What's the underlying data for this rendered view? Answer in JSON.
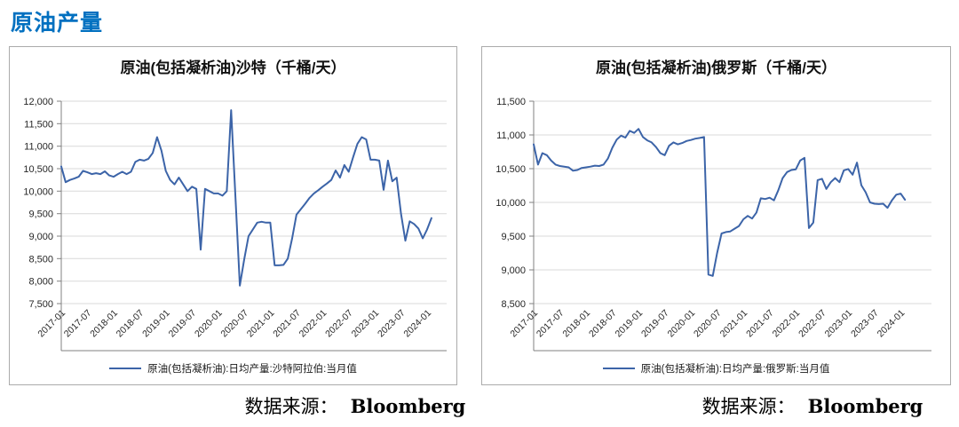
{
  "page": {
    "title": "原油产量",
    "title_color": "#0070C0"
  },
  "chart_data": [
    {
      "type": "line",
      "title": "原油(包括凝析油)沙特（千桶/天）",
      "legend": "原油(包括凝析油):日均产量:沙特阿拉伯:当月值",
      "source_label": "数据来源：",
      "source_name": "Bloomberg",
      "line_color": "#3C64A8",
      "grid": true,
      "legend_position": "bottom",
      "ylim": [
        7500,
        12000
      ],
      "y_ticks": [
        {
          "value": 12000,
          "label": "12,000"
        },
        {
          "value": 11500,
          "label": "11,500"
        },
        {
          "value": 11000,
          "label": "11,000"
        },
        {
          "value": 10500,
          "label": "10,500"
        },
        {
          "value": 10000,
          "label": "10,000"
        },
        {
          "value": 9500,
          "label": "9,500"
        },
        {
          "value": 9000,
          "label": "9,000"
        },
        {
          "value": 8500,
          "label": "8,500"
        },
        {
          "value": 8000,
          "label": "8,000"
        },
        {
          "value": 7500,
          "label": "7,500"
        }
      ],
      "x_start": "2017-01",
      "x_frequency": "monthly",
      "x_tick_interval": 6,
      "x_tick_labels": [
        "2017-01",
        "2017-07",
        "2018-01",
        "2018-07",
        "2019-01",
        "2019-07",
        "2020-01",
        "2020-07",
        "2021-01",
        "2021-07",
        "2022-01",
        "2022-07",
        "2023-01",
        "2023-07",
        "2024-01"
      ],
      "values": [
        10550,
        10200,
        10250,
        10280,
        10320,
        10450,
        10420,
        10380,
        10400,
        10380,
        10440,
        10350,
        10320,
        10380,
        10430,
        10380,
        10430,
        10650,
        10700,
        10680,
        10720,
        10850,
        11200,
        10900,
        10450,
        10250,
        10150,
        10300,
        10150,
        10000,
        10100,
        10050,
        8700,
        10050,
        10000,
        9950,
        9950,
        9900,
        10000,
        11800,
        9850,
        7900,
        8480,
        9000,
        9150,
        9300,
        9320,
        9300,
        9300,
        8350,
        8350,
        8360,
        8500,
        8950,
        9480,
        9600,
        9720,
        9850,
        9950,
        10020,
        10100,
        10170,
        10250,
        10460,
        10300,
        10580,
        10430,
        10750,
        11050,
        11200,
        11150,
        10700,
        10700,
        10680,
        10030,
        10680,
        10220,
        10300,
        9500,
        8900,
        9330,
        9270,
        9170,
        8950,
        9150,
        9400
      ]
    },
    {
      "type": "line",
      "title": "原油(包括凝析油)俄罗斯（千桶/天）",
      "legend": "原油(包括凝析油):日均产量:俄罗斯:当月值",
      "source_label": "数据来源：",
      "source_name": "Bloomberg",
      "line_color": "#3C64A8",
      "grid": true,
      "legend_position": "bottom",
      "ylim": [
        8500,
        11500
      ],
      "y_ticks": [
        {
          "value": 11500,
          "label": "11,500"
        },
        {
          "value": 11000,
          "label": "11,000"
        },
        {
          "value": 10500,
          "label": "10,500"
        },
        {
          "value": 10000,
          "label": "10,000"
        },
        {
          "value": 9500,
          "label": "9,500"
        },
        {
          "value": 9000,
          "label": "9,000"
        },
        {
          "value": 8500,
          "label": "8,500"
        }
      ],
      "x_start": "2017-01",
      "x_frequency": "monthly",
      "x_tick_interval": 6,
      "x_tick_labels": [
        "2017-01",
        "2017-07",
        "2018-01",
        "2018-07",
        "2019-01",
        "2019-07",
        "2020-01",
        "2020-07",
        "2021-01",
        "2021-07",
        "2022-01",
        "2022-07",
        "2023-01",
        "2023-07",
        "2024-01"
      ],
      "values": [
        10860,
        10560,
        10730,
        10700,
        10620,
        10560,
        10540,
        10530,
        10520,
        10470,
        10480,
        10510,
        10520,
        10530,
        10545,
        10540,
        10560,
        10650,
        10810,
        10930,
        10990,
        10960,
        11060,
        11030,
        11090,
        10970,
        10920,
        10890,
        10820,
        10730,
        10700,
        10840,
        10890,
        10860,
        10880,
        10910,
        10925,
        10945,
        10955,
        10970,
        8930,
        8910,
        9250,
        9540,
        9560,
        9570,
        9610,
        9650,
        9750,
        9800,
        9760,
        9850,
        10060,
        10050,
        10070,
        10030,
        10180,
        10360,
        10450,
        10480,
        10490,
        10620,
        10660,
        9620,
        9700,
        10330,
        10350,
        10200,
        10300,
        10360,
        10300,
        10475,
        10495,
        10410,
        10590,
        10255,
        10150,
        10000,
        9980,
        9975,
        9980,
        9920,
        10030,
        10115,
        10130,
        10040
      ]
    }
  ]
}
